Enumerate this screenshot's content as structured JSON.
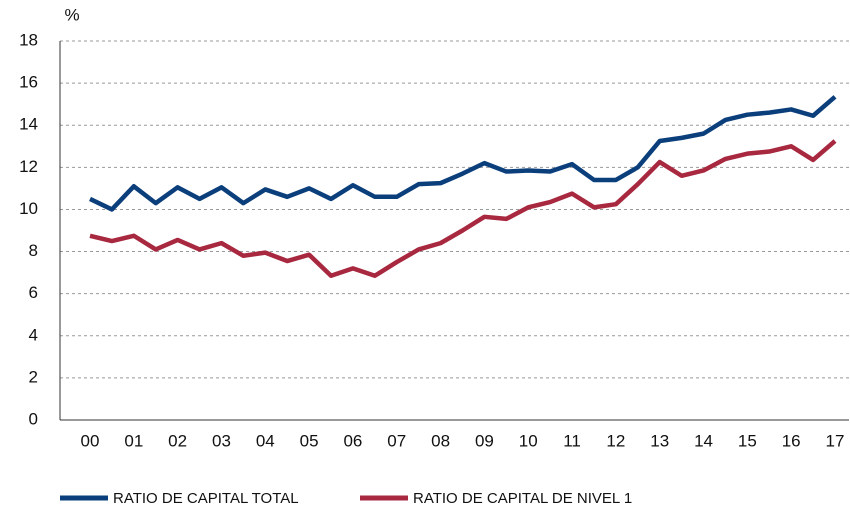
{
  "chart_data": {
    "type": "line",
    "y_label": "%",
    "categories": [
      "00",
      null,
      "01",
      null,
      "02",
      null,
      "03",
      null,
      "04",
      null,
      "05",
      null,
      "06",
      null,
      "07",
      null,
      "08",
      null,
      "09",
      null,
      "10",
      null,
      "11",
      null,
      "12",
      null,
      "13",
      null,
      "14",
      null,
      "15",
      null,
      "16",
      null,
      "17"
    ],
    "series": [
      {
        "name": "RATIO DE CAPITAL TOTAL",
        "color": "#0b3f7c",
        "values": [
          10.5,
          10.0,
          11.1,
          10.3,
          11.05,
          10.5,
          11.05,
          10.3,
          10.95,
          10.6,
          11.0,
          10.5,
          11.15,
          10.6,
          10.6,
          11.2,
          11.25,
          11.7,
          12.2,
          11.8,
          11.85,
          11.8,
          12.15,
          11.4,
          11.4,
          12.0,
          13.25,
          13.4,
          13.6,
          14.25,
          14.5,
          14.6,
          14.75,
          14.45,
          15.35
        ]
      },
      {
        "name": "RATIO DE CAPITAL DE NIVEL 1",
        "color": "#a8283f",
        "values": [
          8.75,
          8.5,
          8.75,
          8.1,
          8.55,
          8.1,
          8.4,
          7.8,
          7.95,
          7.55,
          7.85,
          6.85,
          7.2,
          6.85,
          7.5,
          8.1,
          8.4,
          9.0,
          9.65,
          9.55,
          10.1,
          10.35,
          10.75,
          10.1,
          10.25,
          11.2,
          12.25,
          11.6,
          11.85,
          12.4,
          12.65,
          12.75,
          13.0,
          12.35,
          13.25
        ]
      }
    ],
    "ylim": [
      0,
      18
    ],
    "yticks": [
      0,
      2,
      4,
      6,
      8,
      10,
      12,
      14,
      16,
      18
    ],
    "grid": true
  }
}
